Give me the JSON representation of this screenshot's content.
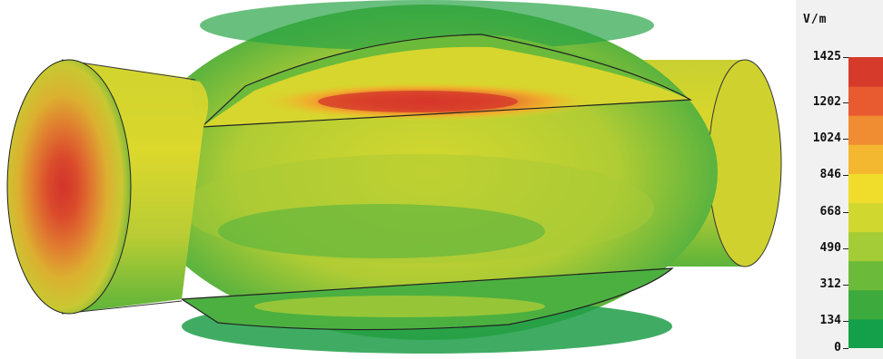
{
  "colorbar": {
    "unit": "V/m",
    "ticks": [
      "1425",
      "1202",
      "1024",
      "846",
      "668",
      "490",
      "312",
      "134",
      "0"
    ],
    "tick_values": [
      1425,
      1202,
      1024,
      846,
      668,
      490,
      312,
      134,
      0
    ],
    "colors": [
      "#14a04a",
      "#3caa3c",
      "#6cba3a",
      "#a4cc36",
      "#d0d830",
      "#f0dc2a",
      "#f4b830",
      "#f08c32",
      "#e85a30",
      "#d63a2a"
    ]
  },
  "field_colors": {
    "low": "#1ea048",
    "mid_low": "#7cc23c",
    "mid": "#d2d630",
    "mid_high": "#f0c02c",
    "high": "#e25a30",
    "peak": "#d6362a"
  }
}
